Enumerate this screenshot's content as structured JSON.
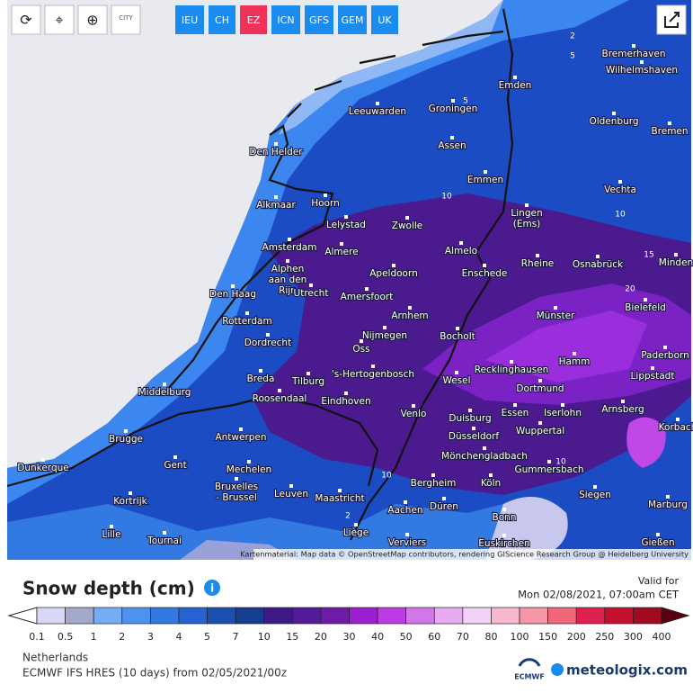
{
  "toolbar": {
    "city_button": "CITY",
    "models": [
      "IEU",
      "CH",
      "EZ",
      "ICN",
      "GFS",
      "GEM",
      "UK"
    ],
    "active_model": "EZ"
  },
  "map": {
    "cities": [
      "Bremerhaven",
      "Wilhelmshaven",
      "Emden",
      "Leeuwarden",
      "Groningen",
      "Oldenburg",
      "Bremen",
      "Den Helder",
      "Assen",
      "Emmen",
      "Vechta",
      "Alkmaar",
      "Hoorn",
      "Lelystad",
      "Zwolle",
      [
        "Lingen",
        "(Ems)"
      ],
      "Amsterdam",
      "Almere",
      "Almelo",
      "Rheine",
      "Osnabrück",
      "Minden",
      [
        "Alphen",
        "aan den",
        "Rijn"
      ],
      "Apeldoorn",
      "Enschede",
      "Den Haag",
      "Utrecht",
      "Amersfoort",
      "Bielefeld",
      "Münster",
      "Arnhem",
      "Rotterdam",
      "Nijmegen",
      "Bocholt",
      "Dordrecht",
      "Oss",
      "Paderborn",
      "Hamm",
      "Recklinghausen",
      "'s-Hertogenbosch",
      "Lippstadt",
      "Breda",
      "Tilburg",
      "Wesel",
      "Middelburg",
      "Roosendaal",
      "Dortmund",
      "Eindhoven",
      "Arnsberg",
      "Venlo",
      "Iserlohn",
      "Duisburg",
      "Essen",
      "Korbach",
      "Wuppertal",
      "Brugge",
      "Antwerpen",
      "Düsseldorf",
      "Mönchengladbach",
      "Dunkerque",
      "Gent",
      "Mechelen",
      "Gummersbach",
      [
        "Bruxelles",
        "- Brussel"
      ],
      "Bergheim",
      "Köln",
      "Leuven",
      "Kortrijk",
      "Maastricht",
      "Siegen",
      "Düren",
      "Aachen",
      "Marburg",
      "Bonn",
      "Lille",
      "Liège",
      "Tournai",
      "Verviers",
      "Euskirchen",
      "Gießen"
    ],
    "contour_labels": [
      "2",
      "5",
      "5",
      "10",
      "10",
      "15",
      "20",
      "10",
      "2",
      "10"
    ],
    "attribution": "Kartenmaterial: Map data © OpenStreetMap contributors, rendering GIScience Research Group @ Heidelberg University"
  },
  "legend": {
    "title": "Snow depth (cm)",
    "valid_label": "Valid for",
    "valid_time": "Mon 02/08/2021, 07:00am CET",
    "labels": [
      "0.1",
      "0.5",
      "1",
      "2",
      "3",
      "4",
      "5",
      "7",
      "10",
      "15",
      "20",
      "30",
      "40",
      "50",
      "60",
      "70",
      "80",
      "100",
      "150",
      "200",
      "250",
      "300",
      "400"
    ],
    "colors": [
      "#d8d8f4",
      "#a5a9c9",
      "#75acf6",
      "#4d92ee",
      "#3279e2",
      "#2563d0",
      "#1b4fb0",
      "#173e8e",
      "#3d1a86",
      "#531b98",
      "#6d1ba9",
      "#9a1fd0",
      "#bd3be4",
      "#d377e8",
      "#e6abf0",
      "#f2d2f6",
      "#f7b7cf",
      "#f597a6",
      "#ef6779",
      "#de2050",
      "#c2102f",
      "#9f0b21",
      "#80081a"
    ],
    "low_color": "#ffffff",
    "high_color": "#5a0010"
  },
  "footer": {
    "region": "Netherlands",
    "model_run": "ECMWF IFS HRES  (10 days) from 02/05/2021/00z",
    "logo_small": "ECMWF",
    "brand": "meteologix.com"
  }
}
